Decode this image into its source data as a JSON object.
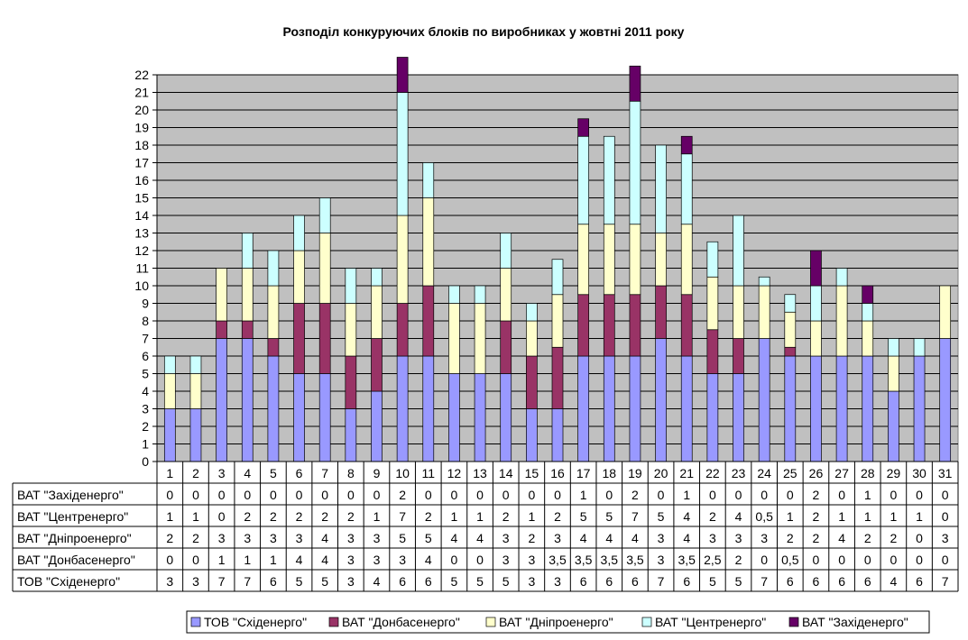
{
  "chart_data": {
    "type": "bar",
    "stacked": true,
    "title": "Розподіл конкуруючих блоків по виробниках у жовтні 2011 року",
    "categories": [
      "1",
      "2",
      "3",
      "4",
      "5",
      "6",
      "7",
      "8",
      "9",
      "10",
      "11",
      "12",
      "13",
      "14",
      "15",
      "16",
      "17",
      "18",
      "19",
      "20",
      "21",
      "22",
      "23",
      "24",
      "25",
      "26",
      "27",
      "28",
      "29",
      "30",
      "31"
    ],
    "ylim": [
      0,
      22
    ],
    "yticks": [
      "0",
      "1",
      "2",
      "3",
      "4",
      "5",
      "6",
      "7",
      "8",
      "9",
      "10",
      "11",
      "12",
      "13",
      "14",
      "15",
      "16",
      "17",
      "18",
      "19",
      "20",
      "21",
      "22"
    ],
    "grid": true,
    "plot_background": "#C0C0C0",
    "legend_position": "bottom",
    "series": [
      {
        "name": "ТОВ \"Східенерго\"",
        "color": "#9999FF",
        "values": [
          3,
          3,
          7,
          7,
          6,
          5,
          5,
          3,
          4,
          6,
          6,
          5,
          5,
          5,
          3,
          3,
          6,
          6,
          6,
          7,
          6,
          5,
          5,
          7,
          6,
          6,
          6,
          6,
          4,
          6,
          7
        ],
        "labels": [
          "3",
          "3",
          "7",
          "7",
          "6",
          "5",
          "5",
          "3",
          "4",
          "6",
          "6",
          "5",
          "5",
          "5",
          "3",
          "3",
          "6",
          "6",
          "6",
          "7",
          "6",
          "5",
          "5",
          "7",
          "6",
          "6",
          "6",
          "6",
          "4",
          "6",
          "7"
        ]
      },
      {
        "name": "ВАТ \"Донбасенерго\"",
        "color": "#993366",
        "values": [
          0,
          0,
          1,
          1,
          1,
          4,
          4,
          3,
          3,
          3,
          4,
          0,
          0,
          3,
          3,
          3.5,
          3.5,
          3.5,
          3.5,
          3,
          3.5,
          2.5,
          2,
          0,
          0.5,
          0,
          0,
          0,
          0,
          0,
          0
        ],
        "labels": [
          "0",
          "0",
          "1",
          "1",
          "1",
          "4",
          "4",
          "3",
          "3",
          "3",
          "4",
          "0",
          "0",
          "3",
          "3",
          "3,5",
          "3,5",
          "3,5",
          "3,5",
          "3",
          "3,5",
          "2,5",
          "2",
          "0",
          "0,5",
          "0",
          "0",
          "0",
          "0",
          "0",
          "0"
        ]
      },
      {
        "name": "ВАТ \"Дніпроенерго\"",
        "color": "#FFFFCC",
        "values": [
          2,
          2,
          3,
          3,
          3,
          3,
          4,
          3,
          3,
          5,
          5,
          4,
          4,
          3,
          2,
          3,
          4,
          4,
          4,
          3,
          4,
          3,
          3,
          3,
          2,
          2,
          4,
          2,
          2,
          0,
          3
        ],
        "labels": [
          "2",
          "2",
          "3",
          "3",
          "3",
          "3",
          "4",
          "3",
          "3",
          "5",
          "5",
          "4",
          "4",
          "3",
          "2",
          "3",
          "4",
          "4",
          "4",
          "3",
          "4",
          "3",
          "3",
          "3",
          "2",
          "2",
          "4",
          "2",
          "2",
          "0",
          "3"
        ]
      },
      {
        "name": "ВАТ \"Центренерго\"",
        "color": "#CCFFFF",
        "values": [
          1,
          1,
          0,
          2,
          2,
          2,
          2,
          2,
          1,
          7,
          2,
          1,
          1,
          2,
          1,
          2,
          5,
          5,
          7,
          5,
          4,
          2,
          4,
          0.5,
          1,
          2,
          1,
          1,
          1,
          1,
          0
        ],
        "labels": [
          "1",
          "1",
          "0",
          "2",
          "2",
          "2",
          "2",
          "2",
          "1",
          "7",
          "2",
          "1",
          "1",
          "2",
          "1",
          "2",
          "5",
          "5",
          "7",
          "5",
          "4",
          "2",
          "4",
          "0,5",
          "1",
          "2",
          "1",
          "1",
          "1",
          "1",
          "0"
        ]
      },
      {
        "name": "ВАТ \"Західенерго\"",
        "color": "#660066",
        "values": [
          0,
          0,
          0,
          0,
          0,
          0,
          0,
          0,
          0,
          2,
          0,
          0,
          0,
          0,
          0,
          0,
          1,
          0,
          2,
          0,
          1,
          0,
          0,
          0,
          0,
          2,
          0,
          1,
          0,
          0,
          0
        ],
        "labels": [
          "0",
          "0",
          "0",
          "0",
          "0",
          "0",
          "0",
          "0",
          "0",
          "2",
          "0",
          "0",
          "0",
          "0",
          "0",
          "0",
          "1",
          "0",
          "2",
          "0",
          "1",
          "0",
          "0",
          "0",
          "0",
          "2",
          "0",
          "1",
          "0",
          "0",
          "0"
        ]
      }
    ],
    "table_row_order": [
      4,
      3,
      2,
      1,
      0
    ]
  }
}
